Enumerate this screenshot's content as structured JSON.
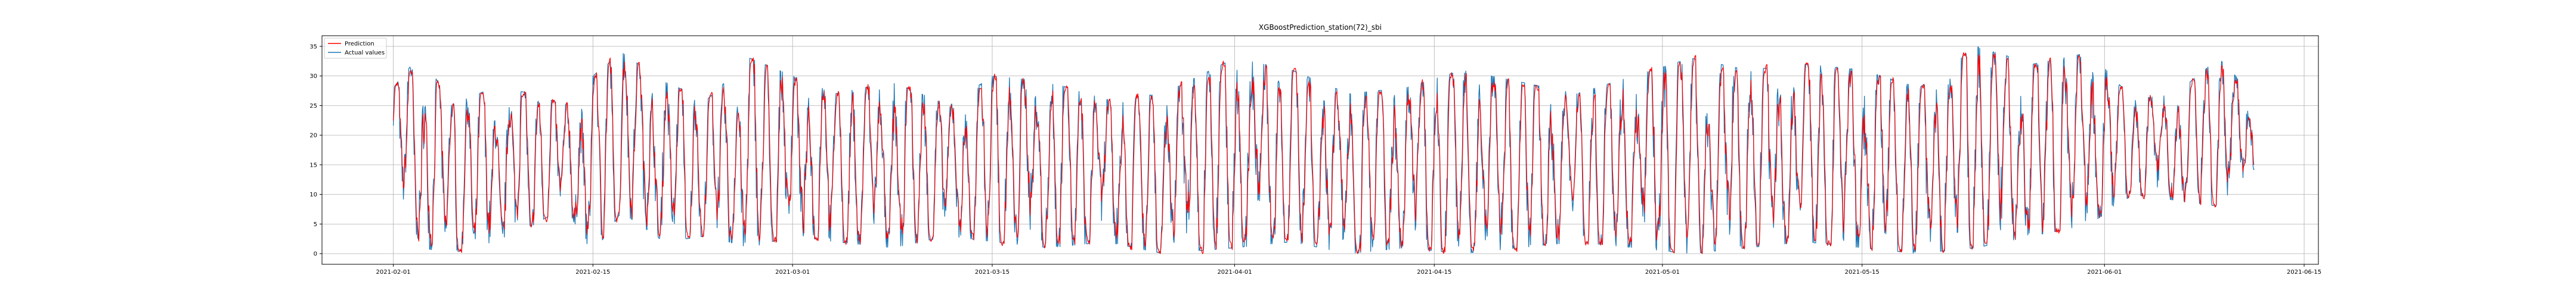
{
  "chart_data": {
    "type": "line",
    "title": "XGBoostPrediction_station(72)_sbi",
    "xlabel": "",
    "ylabel": "",
    "x_range": [
      "2021-01-27",
      "2021-06-16"
    ],
    "ylim": [
      -1.8,
      36.8
    ],
    "x_ticks": [
      "2021-02-01",
      "2021-02-15",
      "2021-03-01",
      "2021-03-15",
      "2021-04-01",
      "2021-04-15",
      "2021-05-01",
      "2021-05-15",
      "2021-06-01",
      "2021-06-15"
    ],
    "y_ticks": [
      0,
      5,
      10,
      15,
      20,
      25,
      30,
      35
    ],
    "grid": true,
    "legend_position": "top-left",
    "series": [
      {
        "name": "Prediction",
        "color": "#ff0000"
      },
      {
        "name": "Actual values",
        "color": "#1f77b4"
      }
    ],
    "data_range": {
      "start": "2021-02-01",
      "end": "2021-06-11"
    },
    "sampling": "hourly",
    "daily_extremes": {
      "dates": [
        "2021-02-01",
        "2021-02-03",
        "2021-02-05",
        "2021-02-08",
        "2021-02-11",
        "2021-02-13",
        "2021-02-15",
        "2021-02-17",
        "2021-02-20",
        "2021-02-23",
        "2021-02-26",
        "2021-03-01",
        "2021-03-04",
        "2021-03-08",
        "2021-03-12",
        "2021-03-15",
        "2021-03-19",
        "2021-03-23",
        "2021-03-27",
        "2021-04-01",
        "2021-04-05",
        "2021-04-09",
        "2021-04-13",
        "2021-04-17",
        "2021-04-21",
        "2021-04-25",
        "2021-04-29",
        "2021-05-03",
        "2021-05-07",
        "2021-05-11",
        "2021-05-15",
        "2021-05-19",
        "2021-05-23",
        "2021-05-27",
        "2021-05-31",
        "2021-06-03",
        "2021-06-06",
        "2021-06-09",
        "2021-06-11"
      ],
      "max": [
        28,
        34,
        25,
        28,
        27,
        25,
        30,
        34,
        29,
        26,
        33,
        30,
        27,
        29,
        25,
        30,
        29,
        26,
        27,
        33,
        31,
        27,
        28,
        31,
        29,
        27,
        30,
        33,
        31,
        32,
        31,
        28,
        35,
        32,
        34,
        26,
        27,
        33,
        28
      ],
      "min": [
        13,
        1,
        0,
        2,
        5,
        8,
        0,
        7,
        2,
        3,
        1,
        3,
        2,
        1,
        3,
        2,
        1,
        2,
        0,
        1,
        2,
        0,
        1,
        0,
        1,
        2,
        1,
        0,
        1,
        2,
        1,
        0,
        1,
        3,
        5,
        10,
        9,
        8,
        12
      ]
    }
  }
}
